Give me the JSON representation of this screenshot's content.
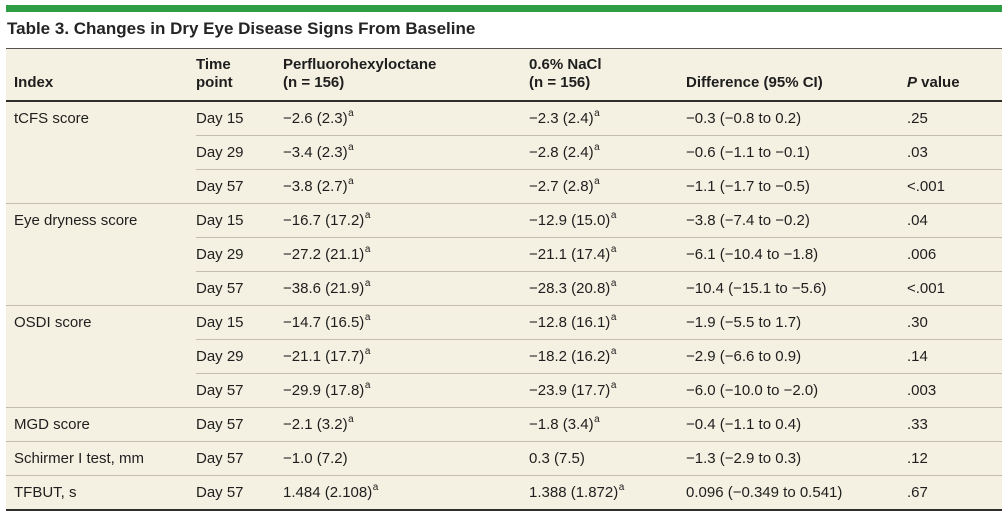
{
  "title": "Table 3. Changes in Dry Eye Disease Signs From Baseline",
  "colors": {
    "accent_green": "#2e9d44",
    "table_background": "#f5f1e2",
    "dark_rule": "#2e2e2e",
    "light_rule": "#c2bdae",
    "text": "#1e1e1e"
  },
  "table": {
    "columns": [
      {
        "key": "index",
        "lines": [
          [
            {
              "text": "Index"
            }
          ]
        ]
      },
      {
        "key": "time",
        "lines": [
          [
            {
              "text": "Time"
            }
          ],
          [
            {
              "text": "point"
            }
          ]
        ]
      },
      {
        "key": "drug",
        "lines": [
          [
            {
              "text": "Perfluorohexyloctane"
            }
          ],
          [
            {
              "text": "(n = 156)"
            }
          ]
        ]
      },
      {
        "key": "nacl",
        "lines": [
          [
            {
              "text": "0.6% NaCl"
            }
          ],
          [
            {
              "text": "(n = 156)"
            }
          ]
        ]
      },
      {
        "key": "diff",
        "lines": [
          [
            {
              "text": "Difference (95% CI)"
            }
          ]
        ]
      },
      {
        "key": "p",
        "lines": [
          [
            {
              "text": "P",
              "italic": true
            },
            {
              "text": " value"
            }
          ]
        ]
      }
    ],
    "groups": [
      {
        "index": "tCFS score",
        "rows": [
          {
            "time": "Day 15",
            "drug": "−2.6 (2.3)",
            "drug_sup": "a",
            "nacl": "−2.3 (2.4)",
            "nacl_sup": "a",
            "diff": "−0.3 (−0.8 to 0.2)",
            "p": ".25"
          },
          {
            "time": "Day 29",
            "drug": "−3.4 (2.3)",
            "drug_sup": "a",
            "nacl": "−2.8 (2.4)",
            "nacl_sup": "a",
            "diff": "−0.6 (−1.1 to −0.1)",
            "p": ".03"
          },
          {
            "time": "Day 57",
            "drug": "−3.8 (2.7)",
            "drug_sup": "a",
            "nacl": "−2.7 (2.8)",
            "nacl_sup": "a",
            "diff": "−1.1 (−1.7 to −0.5)",
            "p": "<.001"
          }
        ]
      },
      {
        "index": "Eye dryness score",
        "rows": [
          {
            "time": "Day 15",
            "drug": "−16.7 (17.2)",
            "drug_sup": "a",
            "nacl": "−12.9 (15.0)",
            "nacl_sup": "a",
            "diff": "−3.8 (−7.4 to −0.2)",
            "p": ".04"
          },
          {
            "time": "Day 29",
            "drug": "−27.2 (21.1)",
            "drug_sup": "a",
            "nacl": "−21.1 (17.4)",
            "nacl_sup": "a",
            "diff": "−6.1 (−10.4 to −1.8)",
            "p": ".006"
          },
          {
            "time": "Day 57",
            "drug": "−38.6 (21.9)",
            "drug_sup": "a",
            "nacl": "−28.3 (20.8)",
            "nacl_sup": "a",
            "diff": "−10.4 (−15.1 to −5.6)",
            "p": "<.001"
          }
        ]
      },
      {
        "index": "OSDI score",
        "rows": [
          {
            "time": "Day 15",
            "drug": "−14.7 (16.5)",
            "drug_sup": "a",
            "nacl": "−12.8 (16.1)",
            "nacl_sup": "a",
            "diff": "−1.9 (−5.5 to 1.7)",
            "p": ".30"
          },
          {
            "time": "Day 29",
            "drug": "−21.1 (17.7)",
            "drug_sup": "a",
            "nacl": "−18.2 (16.2)",
            "nacl_sup": "a",
            "diff": "−2.9 (−6.6 to 0.9)",
            "p": ".14"
          },
          {
            "time": "Day 57",
            "drug": "−29.9 (17.8)",
            "drug_sup": "a",
            "nacl": "−23.9 (17.7)",
            "nacl_sup": "a",
            "diff": "−6.0 (−10.0 to −2.0)",
            "p": ".003"
          }
        ]
      },
      {
        "index": "MGD score",
        "rows": [
          {
            "time": "Day 57",
            "drug": "−2.1 (3.2)",
            "drug_sup": "a",
            "nacl": "−1.8 (3.4)",
            "nacl_sup": "a",
            "diff": "−0.4 (−1.1 to 0.4)",
            "p": ".33"
          }
        ]
      },
      {
        "index": "Schirmer I test, mm",
        "rows": [
          {
            "time": "Day 57",
            "drug": "−1.0 (7.2)",
            "drug_sup": "",
            "nacl": "0.3 (7.5)",
            "nacl_sup": "",
            "diff": "−1.3 (−2.9 to 0.3)",
            "p": ".12"
          }
        ]
      },
      {
        "index": "TFBUT, s",
        "rows": [
          {
            "time": "Day 57",
            "drug": "1.484 (2.108)",
            "drug_sup": "a",
            "nacl": "1.388 (1.872)",
            "nacl_sup": "a",
            "diff": "0.096 (−0.349 to 0.541)",
            "p": ".67"
          }
        ]
      }
    ]
  }
}
